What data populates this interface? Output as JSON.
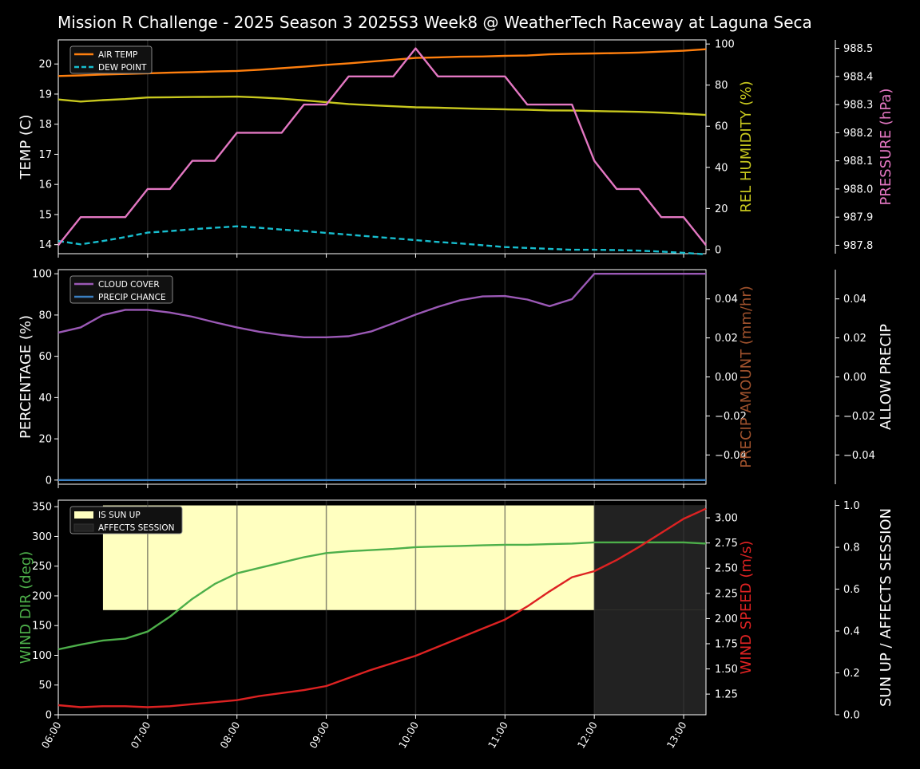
{
  "title": "Mission R Challenge - 2025 Season 3 2025S3 Week8 @ WeatherTech Raceway at Laguna Seca",
  "colors": {
    "background": "#000000",
    "axis": "#ffffff",
    "air_temp": "#ff7f0e",
    "dew_point": "#17becf",
    "humidity": "#c8c81e",
    "pressure": "#e377c2",
    "cloud_cover": "#9b59b6",
    "precip_chance": "#3a7fc1",
    "precip_amount": "#a0522d",
    "wind_dir": "#4daf4a",
    "wind_speed": "#dd2222",
    "sun_up": "#ffffc0",
    "affects_session": "#222222"
  },
  "chart_data": [
    {
      "type": "line",
      "x": [
        "06:00",
        "06:15",
        "06:30",
        "06:45",
        "07:00",
        "07:15",
        "07:30",
        "07:45",
        "08:00",
        "08:15",
        "08:30",
        "08:45",
        "09:00",
        "09:15",
        "09:30",
        "09:45",
        "10:00",
        "10:15",
        "10:30",
        "10:45",
        "11:00",
        "11:15",
        "11:30",
        "11:45",
        "12:00",
        "12:15",
        "12:30",
        "12:45",
        "13:00",
        "13:15"
      ],
      "x_tick_labels": [
        "06:00",
        "07:00",
        "08:00",
        "09:00",
        "10:00",
        "11:00",
        "12:00",
        "13:00"
      ],
      "ylabel": "TEMP (C)",
      "y2label": "REL HUMIDITY (%)",
      "y3label": "PRESSURE (hPa)",
      "ylim": [
        13.7,
        20.8
      ],
      "y_ticks": [
        "14",
        "15",
        "16",
        "17",
        "18",
        "19",
        "20"
      ],
      "y2lim": [
        -2,
        102
      ],
      "y2_ticks": [
        "0",
        "20",
        "40",
        "60",
        "80",
        "100"
      ],
      "y3lim": [
        987.77,
        988.53
      ],
      "y3_ticks": [
        "987.8",
        "987.9",
        "988.0",
        "988.1",
        "988.2",
        "988.3",
        "988.4",
        "988.5"
      ],
      "legend": [
        "AIR TEMP",
        "DEW POINT"
      ],
      "legend_position": "upper-left",
      "series": [
        {
          "name": "AIR TEMP",
          "axis": "y",
          "values": [
            19.6,
            19.62,
            19.65,
            19.67,
            19.69,
            19.71,
            19.73,
            19.75,
            19.77,
            19.81,
            19.86,
            19.91,
            19.97,
            20.02,
            20.08,
            20.14,
            20.2,
            20.22,
            20.24,
            20.25,
            20.27,
            20.28,
            20.32,
            20.34,
            20.35,
            20.36,
            20.38,
            20.41,
            20.44,
            20.49
          ]
        },
        {
          "name": "DEW POINT",
          "axis": "y",
          "values": [
            14.12,
            14.01,
            14.12,
            14.25,
            14.4,
            14.45,
            14.51,
            14.56,
            14.61,
            14.56,
            14.5,
            14.45,
            14.39,
            14.33,
            14.27,
            14.21,
            14.15,
            14.09,
            14.04,
            13.98,
            13.92,
            13.89,
            13.86,
            13.83,
            13.83,
            13.82,
            13.8,
            13.77,
            13.73,
            13.68
          ]
        },
        {
          "name": "REL HUMIDITY",
          "axis": "y2",
          "values": [
            73,
            72,
            72.7,
            73.2,
            74,
            74.1,
            74.2,
            74.3,
            74.4,
            74,
            73.4,
            72.6,
            71.7,
            70.8,
            70.2,
            69.7,
            69.2,
            69,
            68.7,
            68.4,
            68.2,
            68,
            67.7,
            67.6,
            67.4,
            67.2,
            67,
            66.6,
            66.1,
            65.5
          ]
        },
        {
          "name": "PRESSURE",
          "axis": "y3",
          "values": [
            987.8,
            987.9,
            987.9,
            987.9,
            988.0,
            988.0,
            988.1,
            988.1,
            988.2,
            988.2,
            988.2,
            988.3,
            988.3,
            988.4,
            988.4,
            988.4,
            988.5,
            988.4,
            988.4,
            988.4,
            988.4,
            988.3,
            988.3,
            988.3,
            988.1,
            988.0,
            988.0,
            987.9,
            987.9,
            987.8
          ]
        }
      ]
    },
    {
      "type": "line",
      "ylabel": "PERCENTAGE (%)",
      "y2label": "PRECIP AMOUNT (mm/hr)",
      "y3label": "ALLOW PRECIP",
      "ylim": [
        -2,
        102
      ],
      "y_ticks": [
        "0",
        "20",
        "40",
        "60",
        "80",
        "100"
      ],
      "y2lim": [
        -0.055,
        0.055
      ],
      "y2_ticks": [
        "−0.04",
        "−0.02",
        "0.00",
        "0.02",
        "0.04"
      ],
      "y3lim": [
        -0.055,
        0.055
      ],
      "y3_ticks": [
        "−0.04",
        "−0.02",
        "0.00",
        "0.02",
        "0.04"
      ],
      "legend": [
        "CLOUD COVER",
        "PRECIP CHANCE"
      ],
      "legend_position": "upper-left",
      "series": [
        {
          "name": "CLOUD COVER",
          "axis": "y",
          "values": [
            71.5,
            74,
            80,
            82.5,
            82.5,
            81.2,
            79.2,
            76.5,
            74,
            71.9,
            70.3,
            69.2,
            69.2,
            69.7,
            72,
            76,
            80.2,
            84,
            87.2,
            89,
            89.2,
            87.5,
            84.3,
            87.7,
            100,
            100,
            100,
            100,
            100,
            100
          ]
        },
        {
          "name": "PRECIP CHANCE",
          "axis": "y",
          "values": [
            0,
            0,
            0,
            0,
            0,
            0,
            0,
            0,
            0,
            0,
            0,
            0,
            0,
            0,
            0,
            0,
            0,
            0,
            0,
            0,
            0,
            0,
            0,
            0,
            0,
            0,
            0,
            0,
            0,
            0
          ]
        }
      ]
    },
    {
      "type": "line",
      "ylabel": "WIND DIR (deg)",
      "y2label": "WIND SPEED (m/s)",
      "y3label": "SUN UP / AFFECTS SESSION",
      "ylim": [
        0,
        361
      ],
      "y_ticks": [
        "0",
        "50",
        "100",
        "150",
        "200",
        "250",
        "300",
        "350"
      ],
      "y2lim": [
        1.045,
        3.175
      ],
      "y2_ticks": [
        "1.25",
        "1.50",
        "1.75",
        "2.00",
        "2.25",
        "2.50",
        "2.75",
        "3.00"
      ],
      "y3lim": [
        0,
        1.025
      ],
      "y3_ticks": [
        "0.0",
        "0.2",
        "0.4",
        "0.6",
        "0.8",
        "1.0"
      ],
      "legend": [
        "IS SUN UP",
        "AFFECTS SESSION"
      ],
      "legend_position": "upper-left",
      "bands": [
        {
          "name": "IS SUN UP",
          "x_start": "06:30",
          "x_end": "13:15",
          "value": 1.0
        },
        {
          "name": "AFFECTS SESSION",
          "x_start": "12:00",
          "x_end": "13:15",
          "value": 1.0
        }
      ],
      "series": [
        {
          "name": "WIND DIR",
          "axis": "y",
          "values": [
            110,
            118,
            125,
            128,
            140,
            165,
            195,
            220,
            238,
            247,
            256,
            265,
            272,
            275,
            277,
            279,
            282,
            283,
            284,
            285,
            286,
            286,
            287,
            288,
            290,
            290,
            290,
            290,
            290,
            288
          ]
        },
        {
          "name": "WIND SPEED",
          "axis": "y2",
          "values": [
            1.14,
            1.12,
            1.13,
            1.13,
            1.12,
            1.13,
            1.15,
            1.17,
            1.19,
            1.23,
            1.26,
            1.29,
            1.33,
            1.41,
            1.49,
            1.56,
            1.63,
            1.72,
            1.81,
            1.9,
            1.99,
            2.12,
            2.27,
            2.41,
            2.47,
            2.58,
            2.71,
            2.85,
            2.99,
            3.09
          ]
        }
      ]
    }
  ]
}
